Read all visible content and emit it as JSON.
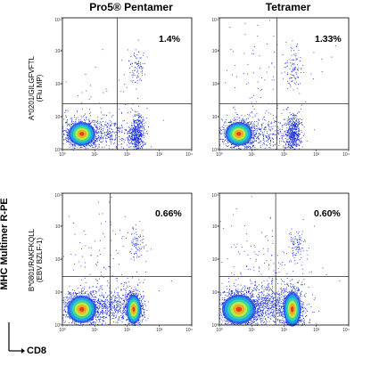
{
  "figure": {
    "column_titles": [
      "Pro5® Pentamer",
      "Tetramer"
    ],
    "row_labels": [
      [
        "A*0201/GILGFVFTL",
        "(Flu MP)"
      ],
      [
        "B*0801/RAKFKQLL",
        "(EBV BZLF-1)"
      ]
    ],
    "y_axis_label": "MHC Multimer R-PE",
    "x_axis_label": "CD8"
  },
  "chart_data": [
    {
      "type": "scatter",
      "subtype": "flow-cytometry-density-dot-plot",
      "panel": "row1-col1",
      "column_title": "Pro5® Pentamer",
      "row_label": "A*0201/GILGFVFTL (Flu MP)",
      "annotation": "1.4%",
      "x_scale": "log",
      "y_scale": "log",
      "xlim": [
        1,
        10000
      ],
      "ylim": [
        1,
        10000
      ],
      "x_ticks": [
        "10⁰",
        "10¹",
        "10²",
        "10³",
        "10⁴"
      ],
      "y_ticks": [
        "10⁰",
        "10¹",
        "10²",
        "10³",
        "10⁴"
      ],
      "quadrant_gate": {
        "x": 50,
        "y": 25
      },
      "populations": [
        {
          "center": [
            4,
            3
          ],
          "spread": [
            0.28,
            0.24
          ],
          "count": 900,
          "hot": true
        },
        {
          "center": [
            200,
            3
          ],
          "spread": [
            0.12,
            0.28
          ],
          "count": 520,
          "hot": false
        },
        {
          "center": [
            30,
            3
          ],
          "spread": [
            0.45,
            0.25
          ],
          "count": 300,
          "hot": false
        },
        {
          "center": [
            200,
            350
          ],
          "spread": [
            0.12,
            0.28
          ],
          "count": 90,
          "hot": false
        },
        {
          "center": [
            20,
            20
          ],
          "spread": [
            0.9,
            0.6
          ],
          "count": 60,
          "hot": false
        }
      ]
    },
    {
      "type": "scatter",
      "subtype": "flow-cytometry-density-dot-plot",
      "panel": "row1-col2",
      "column_title": "Tetramer",
      "row_label": "A*0201/GILGFVFTL (Flu MP)",
      "annotation": "1.33%",
      "x_scale": "log",
      "y_scale": "log",
      "xlim": [
        1,
        10000
      ],
      "ylim": [
        1,
        10000
      ],
      "x_ticks": [
        "10⁰",
        "10¹",
        "10²",
        "10³",
        "10⁴"
      ],
      "y_ticks": [
        "10⁰",
        "10¹",
        "10²",
        "10³",
        "10⁴"
      ],
      "quadrant_gate": {
        "x": 60,
        "y": 25
      },
      "populations": [
        {
          "center": [
            4,
            3
          ],
          "spread": [
            0.28,
            0.24
          ],
          "count": 850,
          "hot": true
        },
        {
          "center": [
            190,
            3
          ],
          "spread": [
            0.12,
            0.3
          ],
          "count": 520,
          "hot": false
        },
        {
          "center": [
            30,
            3
          ],
          "spread": [
            0.45,
            0.25
          ],
          "count": 300,
          "hot": false
        },
        {
          "center": [
            190,
            300
          ],
          "spread": [
            0.12,
            0.3
          ],
          "count": 90,
          "hot": false
        },
        {
          "center": [
            30,
            200
          ],
          "spread": [
            0.9,
            0.9
          ],
          "count": 120,
          "hot": false
        }
      ]
    },
    {
      "type": "scatter",
      "subtype": "flow-cytometry-density-dot-plot",
      "panel": "row2-col1",
      "column_title": "Pro5® Pentamer",
      "row_label": "B*0801/RAKFKQLL (EBV BZLF-1)",
      "annotation": "0.66%",
      "x_scale": "log",
      "y_scale": "log",
      "xlim": [
        1,
        10000
      ],
      "ylim": [
        1,
        10000
      ],
      "x_ticks": [
        "10⁰",
        "10¹",
        "10²",
        "10³",
        "10⁴"
      ],
      "y_ticks": [
        "10⁰",
        "10¹",
        "10²",
        "10³",
        "10⁴"
      ],
      "quadrant_gate": {
        "x": 30,
        "y": 30
      },
      "populations": [
        {
          "center": [
            4,
            3
          ],
          "spread": [
            0.3,
            0.28
          ],
          "count": 1000,
          "hot": true
        },
        {
          "center": [
            160,
            3
          ],
          "spread": [
            0.15,
            0.3
          ],
          "count": 650,
          "hot": true
        },
        {
          "center": [
            30,
            4
          ],
          "spread": [
            0.45,
            0.3
          ],
          "count": 500,
          "hot": false
        },
        {
          "center": [
            200,
            300
          ],
          "spread": [
            0.12,
            0.25
          ],
          "count": 80,
          "hot": false
        },
        {
          "center": [
            15,
            80
          ],
          "spread": [
            0.8,
            0.8
          ],
          "count": 120,
          "hot": false
        }
      ]
    },
    {
      "type": "scatter",
      "subtype": "flow-cytometry-density-dot-plot",
      "panel": "row2-col2",
      "column_title": "Tetramer",
      "row_label": "B*0801/RAKFKQLL (EBV BZLF-1)",
      "annotation": "0.60%",
      "x_scale": "log",
      "y_scale": "log",
      "xlim": [
        1,
        10000
      ],
      "ylim": [
        1,
        10000
      ],
      "x_ticks": [
        "10⁰",
        "10¹",
        "10²",
        "10³",
        "10⁴"
      ],
      "y_ticks": [
        "10⁰",
        "10¹",
        "10²",
        "10³",
        "10⁴"
      ],
      "quadrant_gate": {
        "x": 55,
        "y": 30
      },
      "populations": [
        {
          "center": [
            4,
            3
          ],
          "spread": [
            0.35,
            0.3
          ],
          "count": 1300,
          "hot": true
        },
        {
          "center": [
            180,
            3
          ],
          "spread": [
            0.18,
            0.35
          ],
          "count": 900,
          "hot": true
        },
        {
          "center": [
            30,
            4
          ],
          "spread": [
            0.5,
            0.35
          ],
          "count": 700,
          "hot": false
        },
        {
          "center": [
            230,
            300
          ],
          "spread": [
            0.12,
            0.22
          ],
          "count": 90,
          "hot": false
        },
        {
          "center": [
            20,
            60
          ],
          "spread": [
            0.9,
            0.8
          ],
          "count": 160,
          "hot": false
        }
      ]
    }
  ],
  "colors": {
    "dot": "#1a2fd0",
    "gate_line": "#000000",
    "frame": "#000000",
    "hot_palette": [
      "#2a4fe0",
      "#18b6e8",
      "#3ee08a",
      "#d8e83a",
      "#f2a21e",
      "#e8281c"
    ]
  }
}
